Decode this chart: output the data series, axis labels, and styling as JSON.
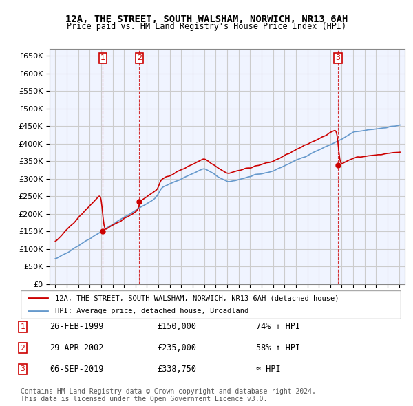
{
  "title": "12A, THE STREET, SOUTH WALSHAM, NORWICH, NR13 6AH",
  "subtitle": "Price paid vs. HM Land Registry's House Price Index (HPI)",
  "ylabel": "",
  "xlabel": "",
  "ylim": [
    0,
    670000
  ],
  "yticks": [
    0,
    50000,
    100000,
    150000,
    200000,
    250000,
    300000,
    350000,
    400000,
    450000,
    500000,
    550000,
    600000,
    650000
  ],
  "ytick_labels": [
    "£0",
    "£50K",
    "£100K",
    "£150K",
    "£200K",
    "£250K",
    "£300K",
    "£350K",
    "£400K",
    "£450K",
    "£500K",
    "£550K",
    "£600K",
    "£650K"
  ],
  "hpi_color": "#6699cc",
  "price_color": "#cc0000",
  "background_color": "#ffffff",
  "grid_color": "#cccccc",
  "sale_points": [
    {
      "year": 1999.15,
      "price": 150000,
      "label": "1"
    },
    {
      "year": 2002.33,
      "price": 235000,
      "label": "2"
    },
    {
      "year": 2019.68,
      "price": 338750,
      "label": "3"
    }
  ],
  "legend_entries": [
    "12A, THE STREET, SOUTH WALSHAM, NORWICH, NR13 6AH (detached house)",
    "HPI: Average price, detached house, Broadland"
  ],
  "table_data": [
    {
      "num": "1",
      "date": "26-FEB-1999",
      "price": "£150,000",
      "hpi": "74% ↑ HPI"
    },
    {
      "num": "2",
      "date": "29-APR-2002",
      "price": "£235,000",
      "hpi": "58% ↑ HPI"
    },
    {
      "num": "3",
      "date": "06-SEP-2019",
      "price": "£338,750",
      "hpi": "≈ HPI"
    }
  ],
  "footer": "Contains HM Land Registry data © Crown copyright and database right 2024.\nThis data is licensed under the Open Government Licence v3.0.",
  "xmin": 1994.5,
  "xmax": 2025.5
}
